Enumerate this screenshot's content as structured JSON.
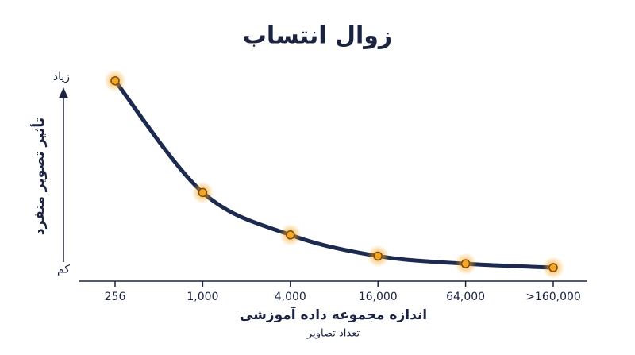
{
  "chart_data": {
    "type": "line",
    "title": "زوال انتساب",
    "x_label": "اندازه مجموعه داده آموزشی",
    "x_sublabel": "تعداد تصاویر",
    "y_label": "تأثیر تصویر منفرد",
    "categories": [
      "256",
      "1,000",
      "4,000",
      "16,000",
      "64,000",
      ">160,000"
    ],
    "values": [
      98,
      40,
      18,
      7,
      3,
      1
    ],
    "color": "#1b2a4e",
    "marker_color": "#f5a623",
    "ylim": [
      -6,
      102
    ],
    "yticks": [
      {
        "value": 100,
        "label": "زیاد"
      },
      {
        "value": 0,
        "label": "کم"
      }
    ]
  }
}
